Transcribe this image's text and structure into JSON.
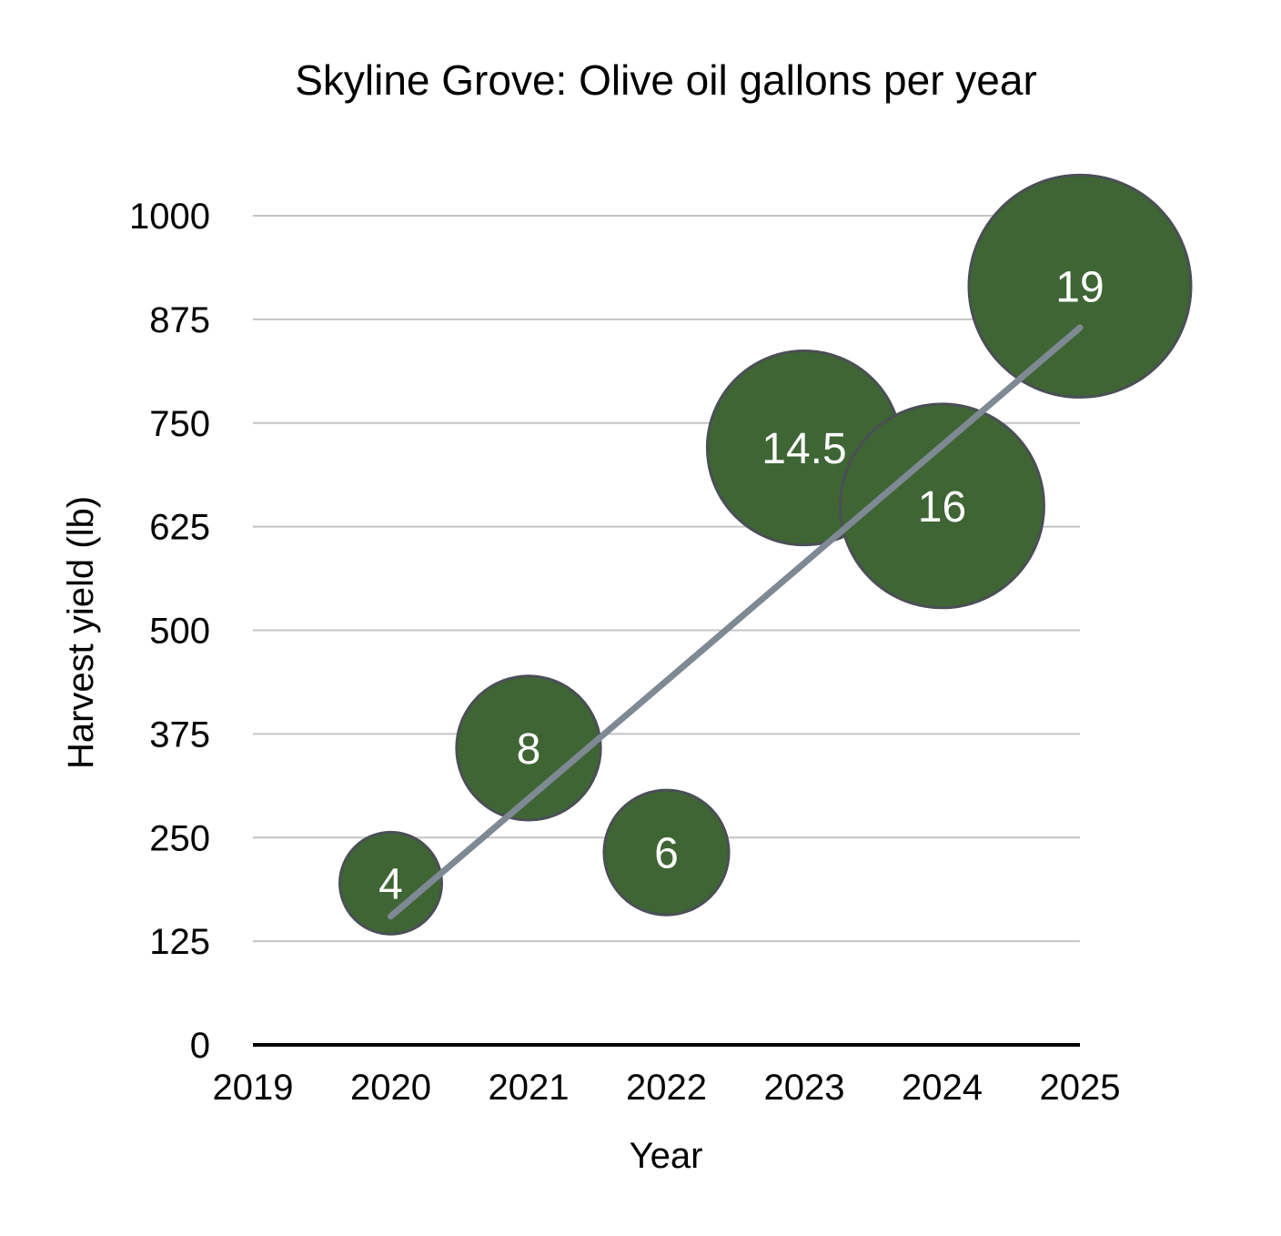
{
  "chart_data": {
    "type": "bubble",
    "title": "Skyline Grove: Olive oil gallons per year",
    "xlabel": "Year",
    "ylabel": "Harvest yield (lb)",
    "xlim": [
      2019,
      2025
    ],
    "ylim": [
      0,
      1000
    ],
    "x_ticks": [
      "2019",
      "2020",
      "2021",
      "2022",
      "2023",
      "2024",
      "2025"
    ],
    "y_ticks": [
      "0",
      "125",
      "250",
      "375",
      "500",
      "625",
      "750",
      "875",
      "1000"
    ],
    "grid": true,
    "series": [
      {
        "name": "Olive oil gallons",
        "points": [
          {
            "x": 2020,
            "y": 195,
            "size": 4,
            "label": "4"
          },
          {
            "x": 2021,
            "y": 358,
            "size": 8,
            "label": "8"
          },
          {
            "x": 2022,
            "y": 232,
            "size": 6,
            "label": "6"
          },
          {
            "x": 2023,
            "y": 720,
            "size": 14.5,
            "label": "14.5"
          },
          {
            "x": 2024,
            "y": 650,
            "size": 16,
            "label": "16"
          },
          {
            "x": 2025,
            "y": 915,
            "size": 19,
            "label": "19"
          }
        ]
      }
    ],
    "trendline": {
      "type": "linear",
      "from": {
        "x": 2020,
        "y": 155
      },
      "to": {
        "x": 2025,
        "y": 865
      }
    },
    "colors": {
      "bubble_fill": "#3f6535",
      "bubble_stroke": "#4a4f55",
      "bubble_label": "#ffffff",
      "trendline": "#7f8994",
      "grid": "#c4c4c4",
      "axis": "#000000"
    }
  }
}
